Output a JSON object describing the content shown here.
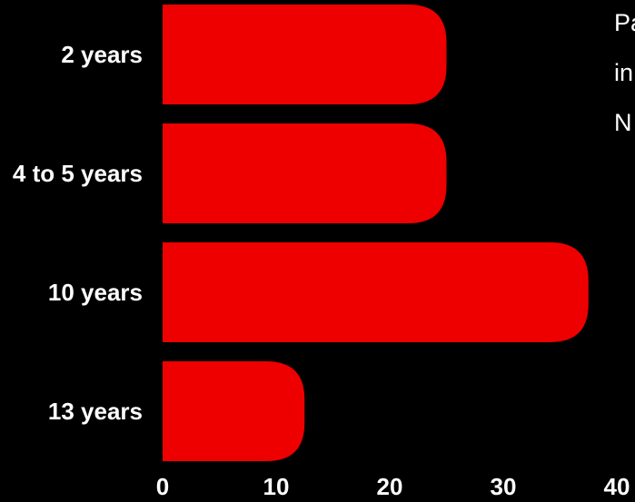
{
  "chart_data": {
    "type": "bar",
    "orientation": "horizontal",
    "categories": [
      "2 years",
      "4 to 5 years",
      "10 years",
      "13 years"
    ],
    "values": [
      25,
      25,
      37.5,
      12.5
    ],
    "xlim": [
      0,
      40
    ],
    "xticks": [
      0,
      10,
      20,
      30,
      40
    ],
    "xlabel": "",
    "ylabel": "",
    "title": "",
    "grid": false,
    "colors": {
      "bar": "#ee0000",
      "background": "#000000",
      "text": "#ffffff"
    }
  },
  "side_text": [
    "Pa",
    "in",
    "N"
  ]
}
